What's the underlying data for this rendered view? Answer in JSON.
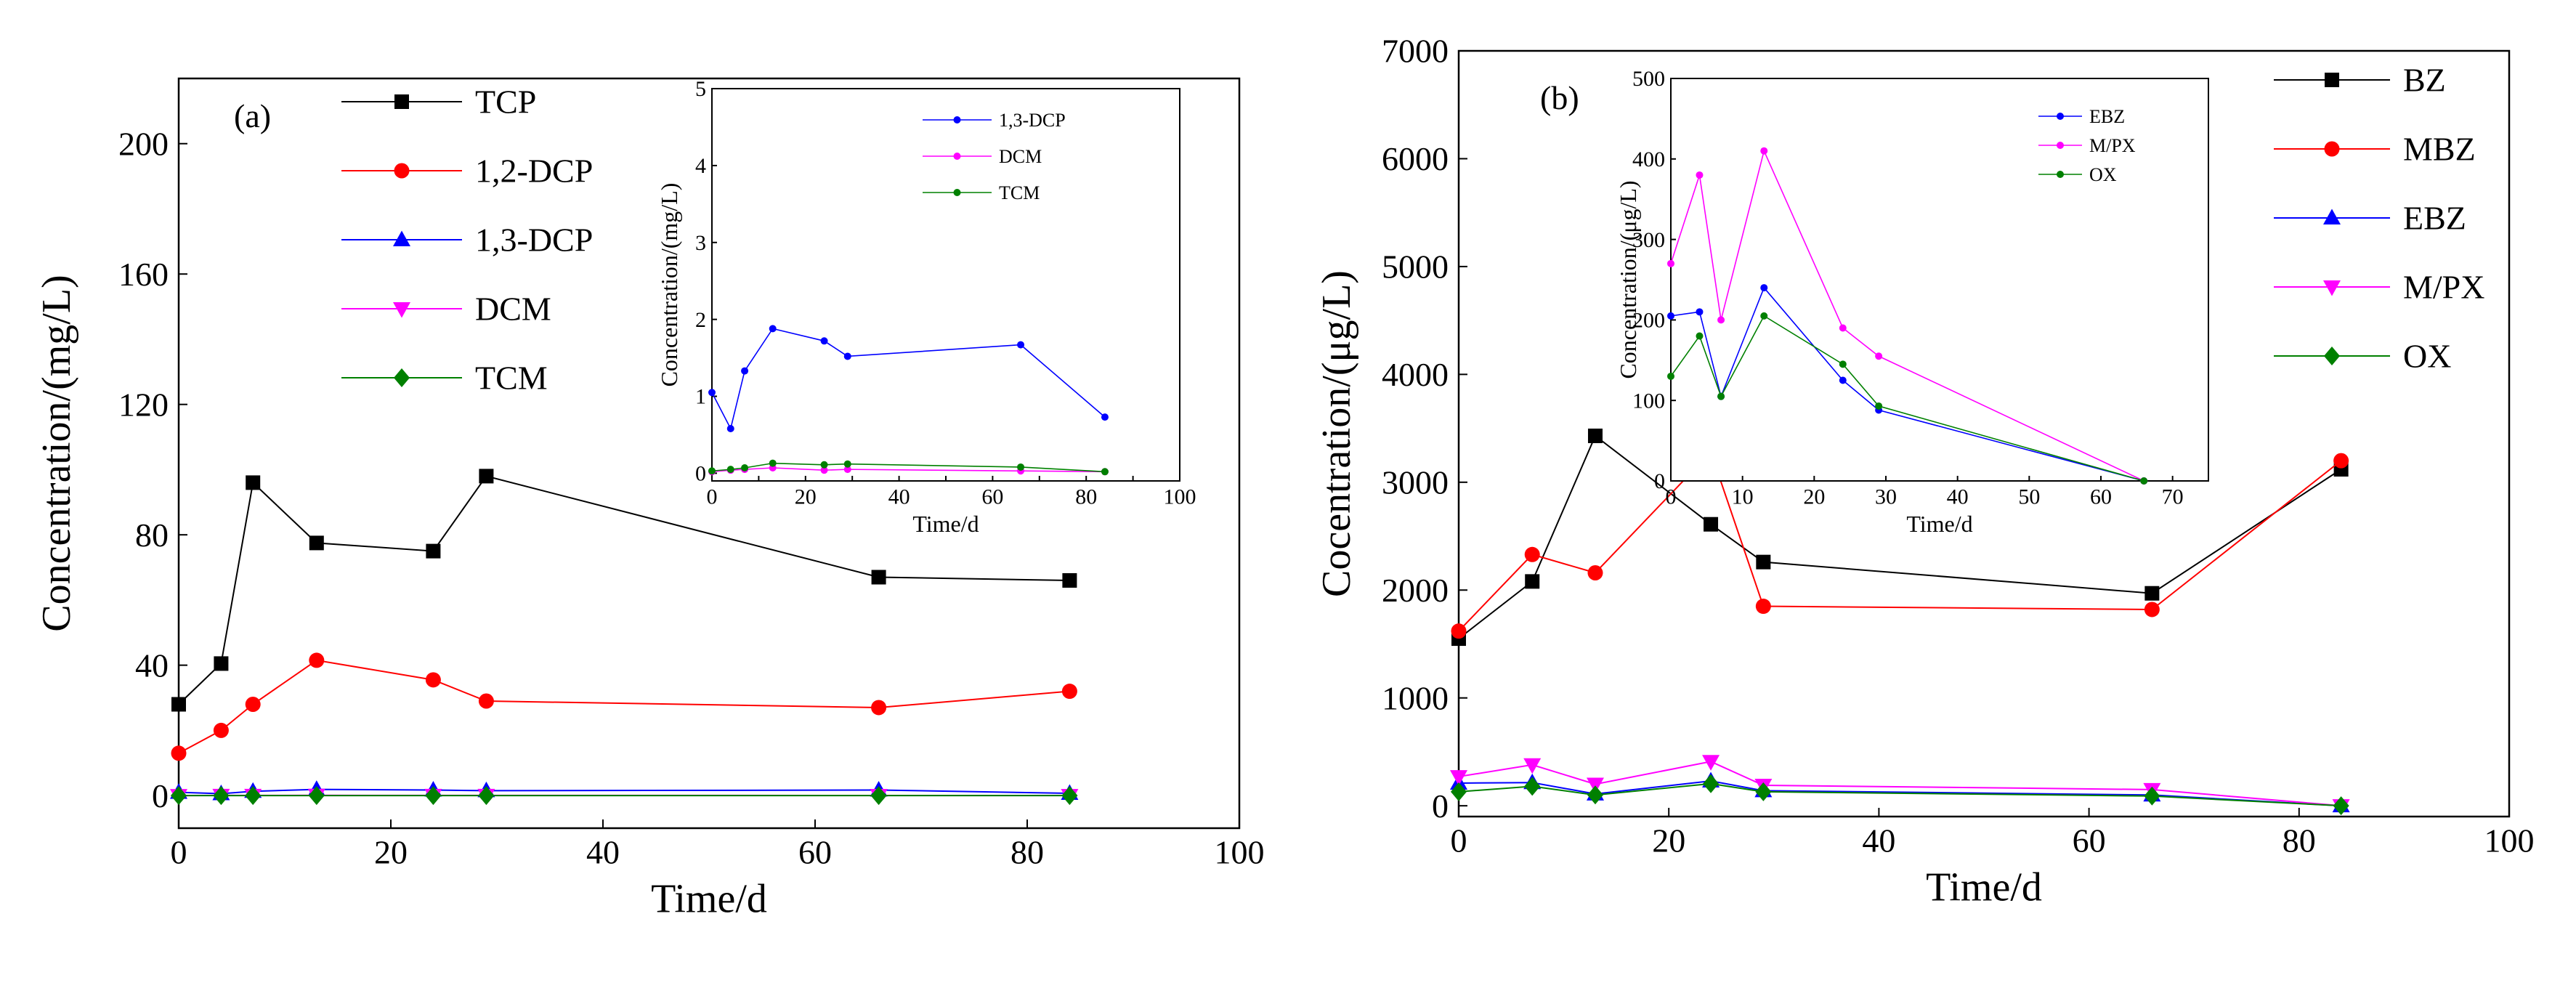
{
  "chart_data": [
    {
      "type": "line",
      "panel_label": "(a)",
      "xlabel": "Time/d",
      "ylabel": "Concentration/(mg/L)",
      "xlim": [
        0,
        100
      ],
      "ylim": [
        -10,
        220
      ],
      "xticks": [
        0,
        20,
        40,
        60,
        80,
        100
      ],
      "yticks": [
        0,
        40,
        80,
        120,
        160,
        200
      ],
      "legend_position": "top-left",
      "series": [
        {
          "name": "TCP",
          "color": "#000000",
          "marker": "square",
          "x": [
            0,
            4,
            7,
            13,
            24,
            29,
            66,
            84
          ],
          "y": [
            28,
            40.5,
            96,
            77.5,
            75,
            98,
            67,
            66
          ]
        },
        {
          "name": "1,2-DCP",
          "color": "#ff0000",
          "marker": "circle",
          "x": [
            0,
            4,
            7,
            13,
            24,
            29,
            66,
            84
          ],
          "y": [
            13,
            20,
            28,
            41.5,
            35.5,
            29,
            27,
            32
          ]
        },
        {
          "name": "1,3-DCP",
          "color": "#0000ff",
          "marker": "triangle-up",
          "x": [
            0,
            4,
            7,
            13,
            24,
            29,
            66,
            84
          ],
          "y": [
            1,
            0.6,
            1.3,
            1.9,
            1.7,
            1.5,
            1.7,
            0.7
          ]
        },
        {
          "name": "DCM",
          "color": "#ff00ff",
          "marker": "triangle-down",
          "x": [
            0,
            4,
            7,
            13,
            24,
            29,
            66,
            84
          ],
          "y": [
            0,
            0.05,
            0.05,
            0.08,
            0.05,
            0.05,
            0.04,
            0.03
          ]
        },
        {
          "name": "TCM",
          "color": "#008000",
          "marker": "diamond",
          "x": [
            0,
            4,
            7,
            13,
            24,
            29,
            66,
            84
          ],
          "y": [
            0,
            0,
            0,
            0,
            0,
            0,
            0,
            0
          ]
        }
      ],
      "inset": {
        "xlabel": "Time/d",
        "ylabel": "Concentration/(mg/L)",
        "xlim": [
          0,
          100
        ],
        "ylim": [
          -0.1,
          5
        ],
        "xticks": [
          0,
          10,
          20,
          30,
          40,
          50,
          60,
          70,
          80,
          90,
          100
        ],
        "xtick_labels": [
          "0",
          "",
          "20",
          "",
          "40",
          "",
          "60",
          "",
          "80",
          "",
          "100"
        ],
        "yticks": [
          0,
          1,
          2,
          3,
          4,
          5
        ],
        "legend_position": "top-right",
        "series": [
          {
            "name": "1,3-DCP",
            "color": "#0000ff",
            "x": [
              0,
              4,
              7,
              13,
              24,
              29,
              66,
              84
            ],
            "y": [
              1.05,
              0.58,
              1.33,
              1.88,
              1.72,
              1.52,
              1.67,
              0.73
            ]
          },
          {
            "name": "DCM",
            "color": "#ff00ff",
            "x": [
              0,
              4,
              7,
              13,
              24,
              29,
              66,
              84
            ],
            "y": [
              0.02,
              0.04,
              0.05,
              0.07,
              0.04,
              0.05,
              0.03,
              0.02
            ]
          },
          {
            "name": "TCM",
            "color": "#008000",
            "x": [
              0,
              4,
              7,
              13,
              24,
              29,
              66,
              84
            ],
            "y": [
              0.03,
              0.05,
              0.07,
              0.13,
              0.11,
              0.12,
              0.08,
              0.02
            ]
          }
        ]
      }
    },
    {
      "type": "line",
      "panel_label": "(b)",
      "xlabel": "Time/d",
      "ylabel": "Cocentration/(μg/L)",
      "xlim": [
        0,
        100
      ],
      "ylim": [
        -100,
        7000
      ],
      "xticks": [
        0,
        20,
        40,
        60,
        80,
        100
      ],
      "yticks": [
        0,
        1000,
        2000,
        3000,
        4000,
        5000,
        6000,
        7000
      ],
      "legend_position": "top-right",
      "series": [
        {
          "name": "BZ",
          "color": "#000000",
          "marker": "square",
          "x": [
            0,
            7,
            13,
            24,
            29,
            66,
            84
          ],
          "y": [
            1550,
            2080,
            3430,
            2610,
            2260,
            1970,
            3120
          ]
        },
        {
          "name": "MBZ",
          "color": "#ff0000",
          "marker": "circle",
          "x": [
            0,
            7,
            13,
            24,
            29,
            66,
            84
          ],
          "y": [
            1620,
            2330,
            2160,
            3280,
            1850,
            1820,
            3200
          ]
        },
        {
          "name": "EBZ",
          "color": "#0000ff",
          "marker": "triangle-up",
          "x": [
            0,
            7,
            13,
            24,
            29,
            66,
            84
          ],
          "y": [
            210,
            215,
            110,
            230,
            140,
            100,
            0
          ]
        },
        {
          "name": "M/PX",
          "color": "#ff00ff",
          "marker": "triangle-down",
          "x": [
            0,
            7,
            13,
            24,
            29,
            66,
            84
          ],
          "y": [
            270,
            380,
            200,
            410,
            190,
            150,
            0
          ]
        },
        {
          "name": "OX",
          "color": "#008000",
          "marker": "diamond",
          "x": [
            0,
            7,
            13,
            24,
            29,
            66,
            84
          ],
          "y": [
            130,
            180,
            100,
            205,
            130,
            90,
            0
          ]
        }
      ],
      "inset": {
        "xlabel": "Time/d",
        "ylabel": "Concentration/(μg/L)",
        "xlim": [
          0,
          75
        ],
        "ylim": [
          0,
          500
        ],
        "xticks": [
          0,
          10,
          20,
          30,
          40,
          50,
          60,
          70
        ],
        "yticks": [
          0,
          100,
          200,
          300,
          400,
          500
        ],
        "legend_position": "top-right",
        "series": [
          {
            "name": "EBZ",
            "color": "#0000ff",
            "x": [
              0,
              4,
              7,
              13,
              24,
              29,
              66
            ],
            "y": [
              205,
              210,
              105,
              240,
              125,
              88,
              0
            ]
          },
          {
            "name": "M/PX",
            "color": "#ff00ff",
            "x": [
              0,
              4,
              7,
              13,
              24,
              29,
              66
            ],
            "y": [
              270,
              380,
              200,
              410,
              190,
              155,
              0
            ]
          },
          {
            "name": "OX",
            "color": "#008000",
            "x": [
              0,
              4,
              7,
              13,
              24,
              29,
              66
            ],
            "y": [
              130,
              180,
              105,
              205,
              145,
              93,
              0
            ]
          }
        ]
      }
    }
  ]
}
